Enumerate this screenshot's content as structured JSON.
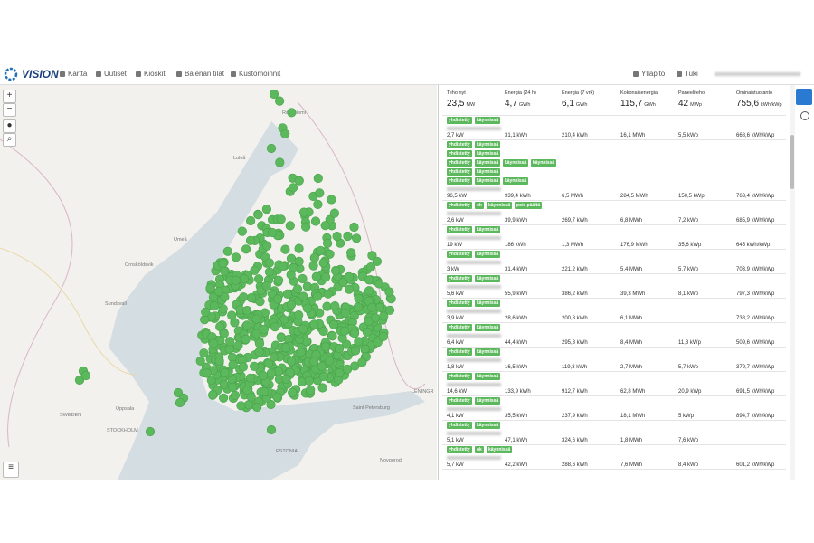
{
  "navbar": {
    "brand": "VISION",
    "menu": [
      "Kartta",
      "Uutiset",
      "Kioskit",
      "Balenan tilat",
      "Kustomoinnit"
    ],
    "right": [
      "Ylläpito",
      "Tuki"
    ]
  },
  "map": {
    "labels": [
      "Rovaniemi",
      "Luleå",
      "Umeå",
      "Örnsköldsvik",
      "Sundsvall",
      "Uppsala",
      "SWEDEN",
      "STOCKHOLM",
      "ESTONIA",
      "Saint Petersburg",
      "LENINGR",
      "Novgorod"
    ]
  },
  "summary": [
    {
      "label": "Teho nyt",
      "value": "23,5",
      "unit": "MW"
    },
    {
      "label": "Energia (24 h)",
      "value": "4,7",
      "unit": "GWh"
    },
    {
      "label": "Energia (7 vrk)",
      "value": "6,1",
      "unit": "GWh"
    },
    {
      "label": "Kokonaisenergia",
      "value": "115,7",
      "unit": "GWh"
    },
    {
      "label": "Paneeliteho",
      "value": "42",
      "unit": "MWp"
    },
    {
      "label": "Ominaistuotanto",
      "value": "755,6",
      "unit": "kWh/kWp"
    }
  ],
  "rows": [
    {
      "tags": [
        [
          "yhdistetty",
          "käynnissä"
        ]
      ],
      "cells": [
        "2,7 kW",
        "31,1 kWh",
        "210,4 kWh",
        "16,1 MWh",
        "5,5 kWp",
        "668,6 kWh/kWp"
      ]
    },
    {
      "tags": [
        [
          "yhdistetty",
          "käynnissä"
        ],
        [
          "yhdistetty",
          "käynnissä"
        ],
        [
          "yhdistetty",
          "käynnissä",
          "käynnissä",
          "käynnissä"
        ],
        [
          "yhdistetty",
          "käynnissä"
        ],
        [
          "yhdistetty",
          "käynnissä",
          "käynnissä"
        ]
      ],
      "cells": [
        "96,5 kW",
        "939,4 kWh",
        "6,5 MWh",
        "284,5 MWh",
        "150,5 kWp",
        "763,4 kWh/kWp"
      ]
    },
    {
      "tags": [
        [
          "yhdistetty",
          "ok",
          "käynnissä",
          "pois päältä"
        ]
      ],
      "cells": [
        "2,6 kW",
        "39,9 kWh",
        "269,7 kWh",
        "6,8 MWh",
        "7,2 kWp",
        "685,9 kWh/kWp"
      ]
    },
    {
      "tags": [
        [
          "yhdistetty",
          "käynnissä"
        ]
      ],
      "cells": [
        "19 kW",
        "186 kWh",
        "1,3 MWh",
        "176,9 MWh",
        "35,6 kWp",
        "645 kWh/kWp"
      ]
    },
    {
      "tags": [
        [
          "yhdistetty",
          "käynnissä"
        ]
      ],
      "cells": [
        "3 kW",
        "31,4 kWh",
        "221,2 kWh",
        "5,4 MWh",
        "5,7 kWp",
        "703,9 kWh/kWp"
      ]
    },
    {
      "tags": [
        [
          "yhdistetty",
          "käynnissä"
        ]
      ],
      "cells": [
        "5,6 kW",
        "55,9 kWh",
        "386,2 kWh",
        "39,3 MWh",
        "8,1 kWp",
        "797,3 kWh/kWp"
      ]
    },
    {
      "tags": [
        [
          "yhdistetty",
          "käynnissä"
        ]
      ],
      "cells": [
        "3,9 kW",
        "28,6 kWh",
        "200,8 kWh",
        "6,1 MWh",
        null,
        "738,2 kWh/kWp"
      ]
    },
    {
      "tags": [
        [
          "yhdistetty",
          "käynnissä"
        ]
      ],
      "cells": [
        "6,4 kW",
        "44,4 kWh",
        "295,3 kWh",
        "8,4 MWh",
        "11,8 kWp",
        "509,6 kWh/kWp"
      ]
    },
    {
      "tags": [
        [
          "yhdistetty",
          "käynnissä"
        ]
      ],
      "cells": [
        "1,8 kW",
        "16,5 kWh",
        "119,3 kWh",
        "2,7 MWh",
        "5,7 kWp",
        "379,7 kWh/kWp"
      ]
    },
    {
      "tags": [
        [
          "yhdistetty",
          "käynnissä"
        ]
      ],
      "cells": [
        "14,6 kW",
        "133,9 kWh",
        "912,7 kWh",
        "62,8 MWh",
        "20,9 kWp",
        "691,5 kWh/kWp"
      ]
    },
    {
      "tags": [
        [
          "yhdistetty",
          "käynnissä"
        ]
      ],
      "cells": [
        "4,1 kW",
        "35,5 kWh",
        "237,9 kWh",
        "18,1 MWh",
        "5 kWp",
        "894,7 kWh/kWp"
      ]
    },
    {
      "tags": [
        [
          "yhdistetty",
          "käynnissä"
        ]
      ],
      "cells": [
        "5,1 kW",
        "47,1 kWh",
        "324,6 kWh",
        "1,8 MWh",
        "7,6 kWp",
        null
      ]
    },
    {
      "tags": [
        [
          "yhdistetty",
          "ok",
          "käynnissä"
        ]
      ],
      "cells": [
        "5,7 kW",
        "42,2 kWh",
        "288,6 kWh",
        "7,6 MWh",
        "8,4 kWp",
        "601,2 kWh/kWp"
      ]
    }
  ]
}
